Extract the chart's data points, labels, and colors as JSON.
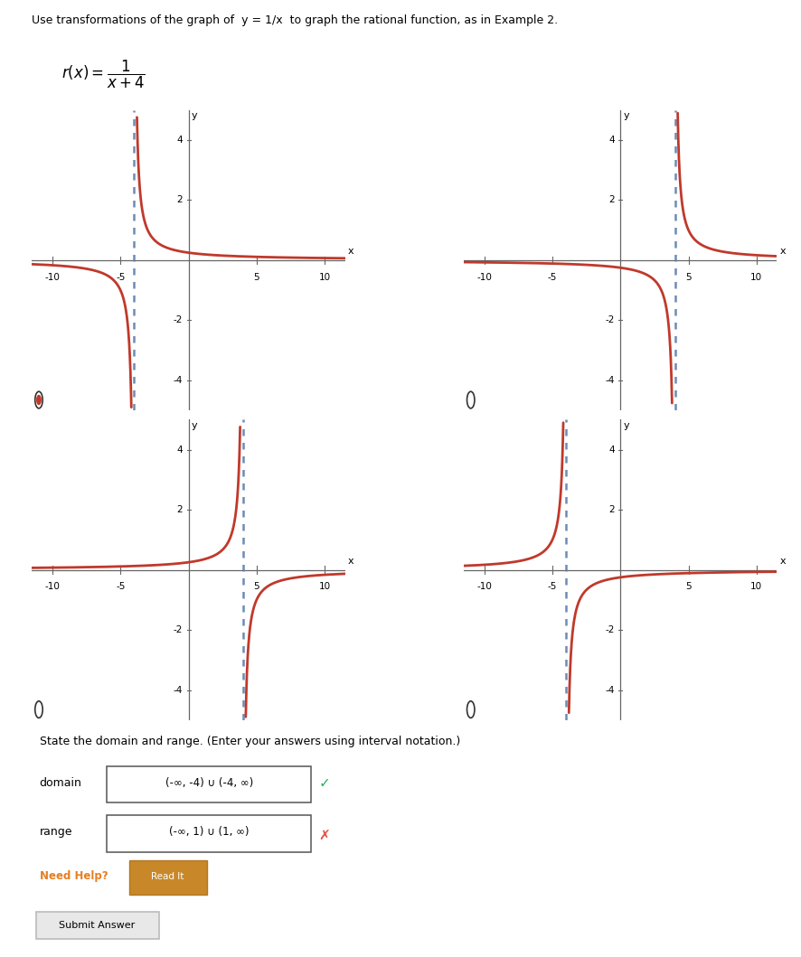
{
  "title_line1": "Use transformations of the graph of  y = 1/x  to graph the rational function, as in Example 2.",
  "graphs": [
    {
      "id": "A",
      "asymptote_x": -4,
      "asymptote_y": 0,
      "xlim": [
        -11.5,
        11.5
      ],
      "ylim": [
        -5,
        5
      ],
      "xticks": [
        -10,
        -5,
        5,
        10
      ],
      "yticks": [
        -4,
        -2,
        2,
        4
      ],
      "radio_filled": true,
      "curve_type": "1/(x+4)"
    },
    {
      "id": "B",
      "asymptote_x": 4,
      "asymptote_y": 0,
      "xlim": [
        -11.5,
        11.5
      ],
      "ylim": [
        -5,
        5
      ],
      "xticks": [
        -10,
        -5,
        5,
        10
      ],
      "yticks": [
        -4,
        -2,
        2,
        4
      ],
      "radio_filled": false,
      "curve_type": "1/(x-4)"
    },
    {
      "id": "C",
      "asymptote_x": 4,
      "asymptote_y": 0,
      "xlim": [
        -11.5,
        11.5
      ],
      "ylim": [
        -5,
        5
      ],
      "xticks": [
        -10,
        -5,
        5,
        10
      ],
      "yticks": [
        -4,
        -2,
        2,
        4
      ],
      "radio_filled": false,
      "curve_type": "-1/(x-4)"
    },
    {
      "id": "D",
      "asymptote_x": -4,
      "asymptote_y": 0,
      "xlim": [
        -11.5,
        11.5
      ],
      "ylim": [
        -5,
        5
      ],
      "xticks": [
        -10,
        -5,
        5,
        10
      ],
      "yticks": [
        -4,
        -2,
        2,
        4
      ],
      "radio_filled": false,
      "curve_type": "1/(x+4)_neg"
    }
  ],
  "curve_color": "#c0392b",
  "asymptote_color": "#5b7fad",
  "axis_color": "#666666",
  "domain_text": "(-∞, -4) ∪ (-4, ∞)",
  "range_text": "(-∞, 1) ∪ (1, ∞)",
  "domain_correct": true,
  "range_correct": false,
  "state_text": "State the domain and range. (Enter your answers using interval notation.)",
  "need_help_text": "Need Help?",
  "read_it_text": "Read It",
  "submit_text": "Submit Answer"
}
